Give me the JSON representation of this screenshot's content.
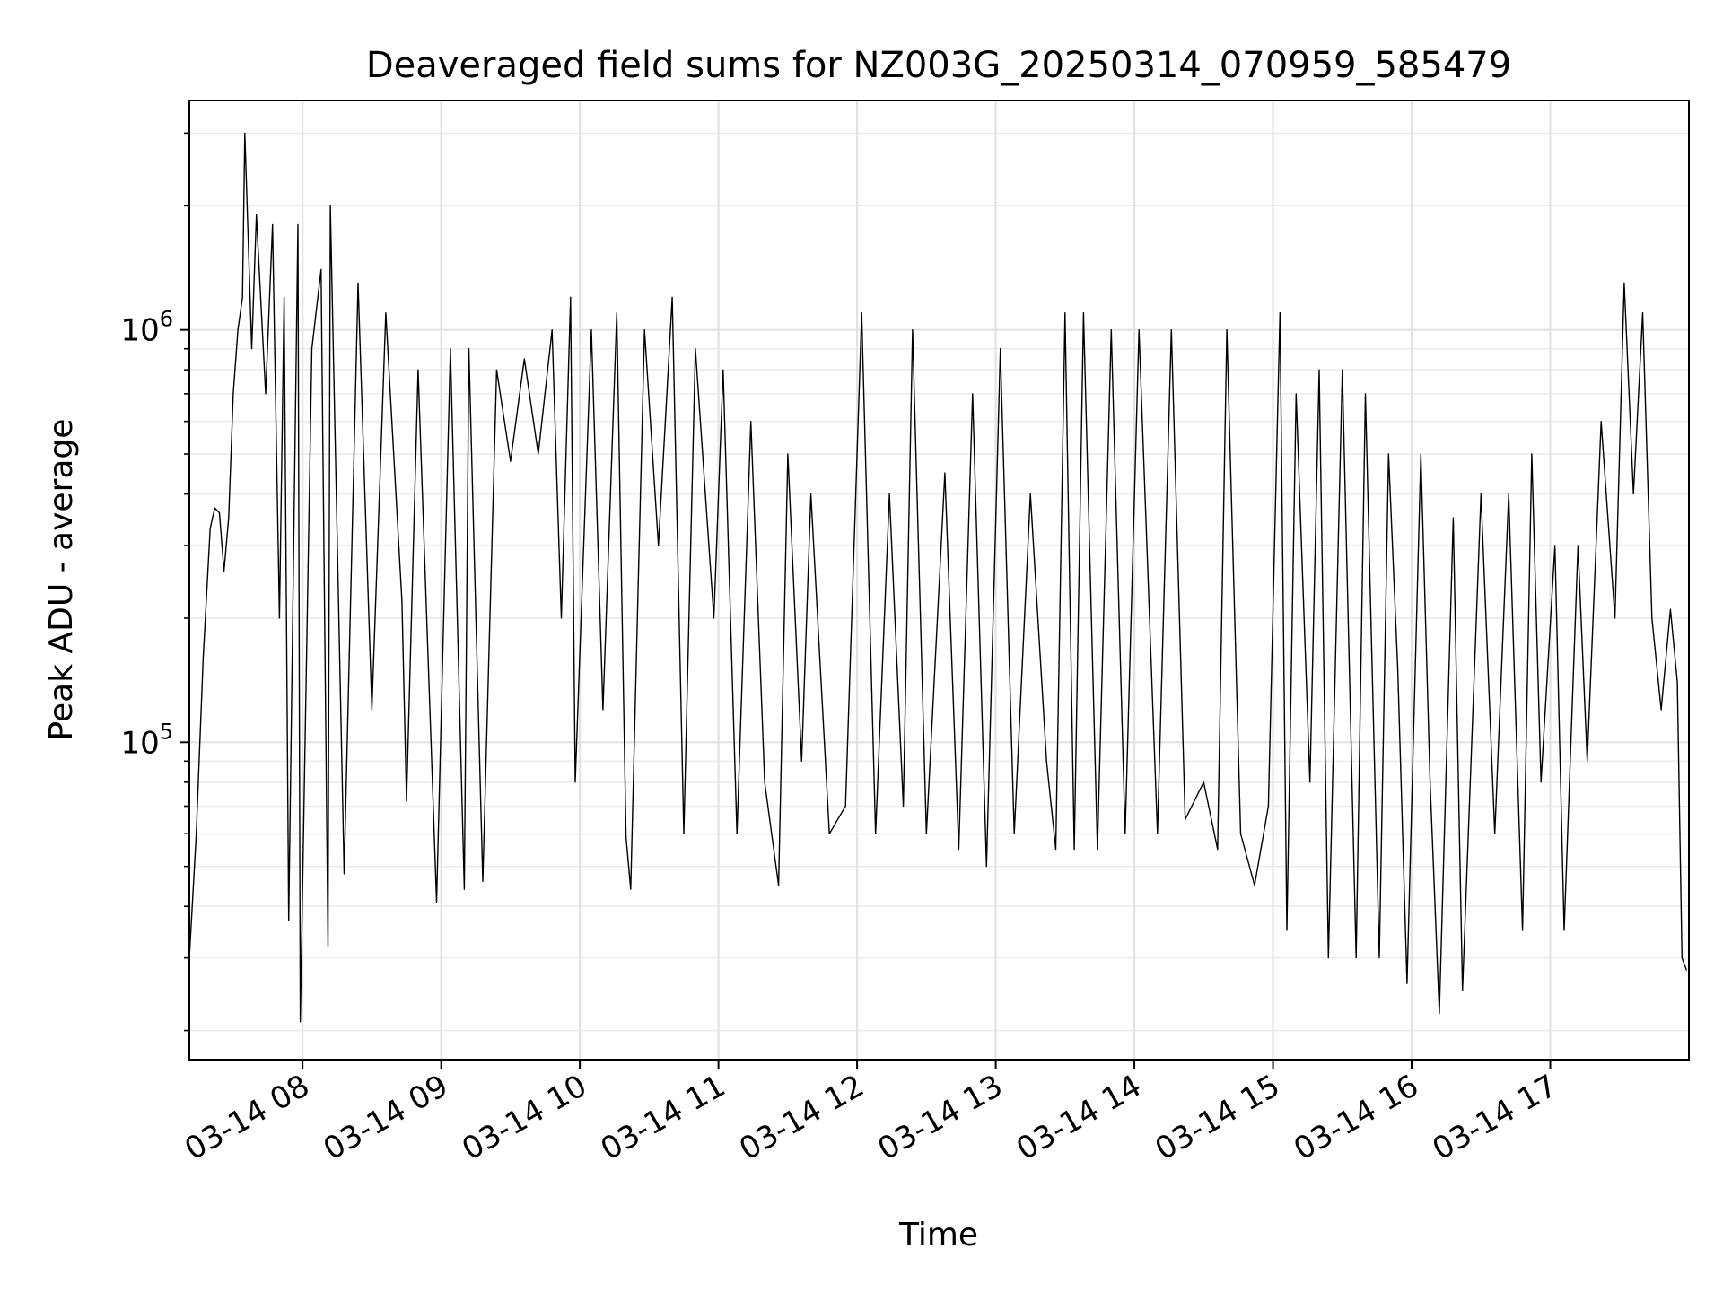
{
  "chart_data": {
    "type": "line",
    "title": "Deaveraged field sums for NZ003G_20250314_070959_585479",
    "xlabel": "Time",
    "ylabel": "Peak ADU - average",
    "x_axis": {
      "kind": "datetime",
      "range": [
        "03-14 07:11",
        "03-14 18:00"
      ],
      "ticks": [
        {
          "value": "03-14 08:00",
          "label": "03-14 08"
        },
        {
          "value": "03-14 09:00",
          "label": "03-14 09"
        },
        {
          "value": "03-14 10:00",
          "label": "03-14 10"
        },
        {
          "value": "03-14 11:00",
          "label": "03-14 11"
        },
        {
          "value": "03-14 12:00",
          "label": "03-14 12"
        },
        {
          "value": "03-14 13:00",
          "label": "03-14 13"
        },
        {
          "value": "03-14 14:00",
          "label": "03-14 14"
        },
        {
          "value": "03-14 15:00",
          "label": "03-14 15"
        },
        {
          "value": "03-14 16:00",
          "label": "03-14 16"
        },
        {
          "value": "03-14 17:00",
          "label": "03-14 17"
        }
      ],
      "tick_label_rotation_deg": 30
    },
    "y_axis": {
      "scale": "log",
      "range": [
        17000,
        3600000
      ],
      "major_ticks": [
        {
          "value": 100000,
          "base": "10",
          "exponent": "5"
        },
        {
          "value": 1000000,
          "base": "10",
          "exponent": "6"
        }
      ],
      "minor_ticks": [
        20000,
        30000,
        40000,
        50000,
        60000,
        70000,
        80000,
        90000,
        200000,
        300000,
        400000,
        500000,
        600000,
        700000,
        800000,
        900000,
        2000000,
        3000000
      ]
    },
    "grid": true,
    "legend": "none",
    "series": [
      {
        "color": "#000000",
        "points": [
          [
            "03-14 07:11",
            30000
          ],
          [
            "03-14 07:14",
            60000
          ],
          [
            "03-14 07:17",
            160000
          ],
          [
            "03-14 07:20",
            330000
          ],
          [
            "03-14 07:22",
            370000
          ],
          [
            "03-14 07:24",
            360000
          ],
          [
            "03-14 07:26",
            260000
          ],
          [
            "03-14 07:28",
            350000
          ],
          [
            "03-14 07:30",
            700000
          ],
          [
            "03-14 07:32",
            1000000
          ],
          [
            "03-14 07:34",
            1200000
          ],
          [
            "03-14 07:35",
            3000000
          ],
          [
            "03-14 07:38",
            900000
          ],
          [
            "03-14 07:40",
            1900000
          ],
          [
            "03-14 07:44",
            700000
          ],
          [
            "03-14 07:47",
            1800000
          ],
          [
            "03-14 07:50",
            200000
          ],
          [
            "03-14 07:52",
            1200000
          ],
          [
            "03-14 07:54",
            37000
          ],
          [
            "03-14 07:58",
            1800000
          ],
          [
            "03-14 07:59",
            21000
          ],
          [
            "03-14 08:04",
            900000
          ],
          [
            "03-14 08:08",
            1400000
          ],
          [
            "03-14 08:11",
            32000
          ],
          [
            "03-14 08:12",
            2000000
          ],
          [
            "03-14 08:18",
            48000
          ],
          [
            "03-14 08:24",
            1300000
          ],
          [
            "03-14 08:30",
            120000
          ],
          [
            "03-14 08:36",
            1100000
          ],
          [
            "03-14 08:43",
            220000
          ],
          [
            "03-14 08:45",
            72000
          ],
          [
            "03-14 08:50",
            800000
          ],
          [
            "03-14 08:58",
            41000
          ],
          [
            "03-14 09:04",
            900000
          ],
          [
            "03-14 09:10",
            44000
          ],
          [
            "03-14 09:12",
            900000
          ],
          [
            "03-14 09:18",
            46000
          ],
          [
            "03-14 09:24",
            800000
          ],
          [
            "03-14 09:30",
            480000
          ],
          [
            "03-14 09:36",
            850000
          ],
          [
            "03-14 09:42",
            500000
          ],
          [
            "03-14 09:48",
            1000000
          ],
          [
            "03-14 09:52",
            200000
          ],
          [
            "03-14 09:56",
            1200000
          ],
          [
            "03-14 09:58",
            80000
          ],
          [
            "03-14 10:05",
            1000000
          ],
          [
            "03-14 10:10",
            120000
          ],
          [
            "03-14 10:16",
            1100000
          ],
          [
            "03-14 10:20",
            59000
          ],
          [
            "03-14 10:22",
            44000
          ],
          [
            "03-14 10:28",
            1000000
          ],
          [
            "03-14 10:34",
            300000
          ],
          [
            "03-14 10:40",
            1200000
          ],
          [
            "03-14 10:45",
            60000
          ],
          [
            "03-14 10:50",
            900000
          ],
          [
            "03-14 10:58",
            200000
          ],
          [
            "03-14 11:02",
            800000
          ],
          [
            "03-14 11:08",
            60000
          ],
          [
            "03-14 11:14",
            600000
          ],
          [
            "03-14 11:20",
            80000
          ],
          [
            "03-14 11:26",
            45000
          ],
          [
            "03-14 11:30",
            500000
          ],
          [
            "03-14 11:36",
            90000
          ],
          [
            "03-14 11:40",
            400000
          ],
          [
            "03-14 11:48",
            60000
          ],
          [
            "03-14 11:55",
            70000
          ],
          [
            "03-14 12:02",
            1100000
          ],
          [
            "03-14 12:08",
            60000
          ],
          [
            "03-14 12:14",
            400000
          ],
          [
            "03-14 12:20",
            70000
          ],
          [
            "03-14 12:24",
            1000000
          ],
          [
            "03-14 12:30",
            60000
          ],
          [
            "03-14 12:38",
            450000
          ],
          [
            "03-14 12:44",
            55000
          ],
          [
            "03-14 12:50",
            700000
          ],
          [
            "03-14 12:56",
            50000
          ],
          [
            "03-14 13:02",
            900000
          ],
          [
            "03-14 13:08",
            60000
          ],
          [
            "03-14 13:15",
            400000
          ],
          [
            "03-14 13:22",
            90000
          ],
          [
            "03-14 13:26",
            55000
          ],
          [
            "03-14 13:30",
            1100000
          ],
          [
            "03-14 13:34",
            55000
          ],
          [
            "03-14 13:38",
            1100000
          ],
          [
            "03-14 13:44",
            55000
          ],
          [
            "03-14 13:50",
            1000000
          ],
          [
            "03-14 13:56",
            60000
          ],
          [
            "03-14 14:02",
            1000000
          ],
          [
            "03-14 14:10",
            60000
          ],
          [
            "03-14 14:16",
            1000000
          ],
          [
            "03-14 14:22",
            65000
          ],
          [
            "03-14 14:30",
            80000
          ],
          [
            "03-14 14:36",
            55000
          ],
          [
            "03-14 14:40",
            1000000
          ],
          [
            "03-14 14:46",
            60000
          ],
          [
            "03-14 14:52",
            45000
          ],
          [
            "03-14 14:58",
            70000
          ],
          [
            "03-14 15:03",
            1100000
          ],
          [
            "03-14 15:06",
            35000
          ],
          [
            "03-14 15:10",
            700000
          ],
          [
            "03-14 15:16",
            80000
          ],
          [
            "03-14 15:20",
            800000
          ],
          [
            "03-14 15:24",
            30000
          ],
          [
            "03-14 15:30",
            800000
          ],
          [
            "03-14 15:36",
            30000
          ],
          [
            "03-14 15:40",
            700000
          ],
          [
            "03-14 15:46",
            30000
          ],
          [
            "03-14 15:50",
            500000
          ],
          [
            "03-14 15:54",
            150000
          ],
          [
            "03-14 15:58",
            26000
          ],
          [
            "03-14 16:04",
            500000
          ],
          [
            "03-14 16:08",
            80000
          ],
          [
            "03-14 16:12",
            22000
          ],
          [
            "03-14 16:18",
            350000
          ],
          [
            "03-14 16:22",
            25000
          ],
          [
            "03-14 16:30",
            400000
          ],
          [
            "03-14 16:36",
            60000
          ],
          [
            "03-14 16:42",
            400000
          ],
          [
            "03-14 16:48",
            35000
          ],
          [
            "03-14 16:52",
            500000
          ],
          [
            "03-14 16:56",
            80000
          ],
          [
            "03-14 17:02",
            300000
          ],
          [
            "03-14 17:06",
            35000
          ],
          [
            "03-14 17:12",
            300000
          ],
          [
            "03-14 17:16",
            90000
          ],
          [
            "03-14 17:22",
            600000
          ],
          [
            "03-14 17:28",
            200000
          ],
          [
            "03-14 17:32",
            1300000
          ],
          [
            "03-14 17:36",
            400000
          ],
          [
            "03-14 17:40",
            1100000
          ],
          [
            "03-14 17:44",
            200000
          ],
          [
            "03-14 17:48",
            120000
          ],
          [
            "03-14 17:52",
            210000
          ],
          [
            "03-14 17:55",
            140000
          ],
          [
            "03-14 17:57",
            30000
          ],
          [
            "03-14 17:59",
            28000
          ]
        ]
      }
    ]
  }
}
